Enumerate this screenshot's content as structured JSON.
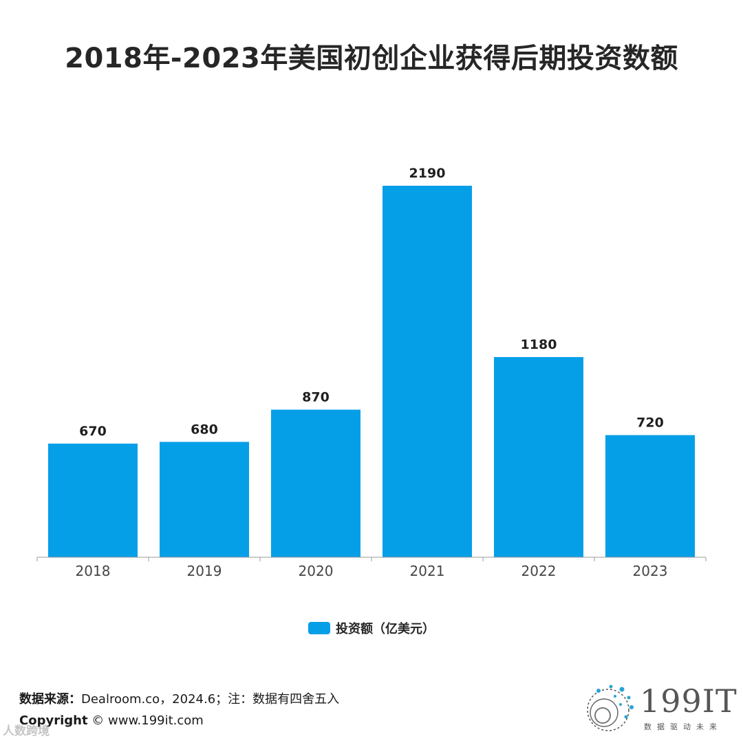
{
  "title": "2018年-2023年美国初创企业获得后期投资数额",
  "chart_data": {
    "type": "bar",
    "categories": [
      "2018",
      "2019",
      "2020",
      "2021",
      "2022",
      "2023"
    ],
    "series": [
      {
        "name": "投资额（亿美元）",
        "values": [
          670,
          680,
          870,
          2190,
          1180,
          720
        ]
      }
    ],
    "data_labels": [
      "670",
      "680",
      "870",
      "2190",
      "1180",
      "720"
    ],
    "ylim": [
      0,
      2190
    ],
    "grid": false,
    "legend_position": "bottom-center",
    "bar_color": "#059fe8"
  },
  "legend": {
    "label": "投资额（亿美元）"
  },
  "footer": {
    "source_label": "数据来源：",
    "source_text": "Dealroom.co，2024.6；注：数据有四舍五入",
    "copyright_label": "Copyright",
    "copyright_text": "©  www.199it.com"
  },
  "watermark": "人数跨境",
  "brand": {
    "name": "199IT",
    "tagline": "数据驱动未来"
  }
}
